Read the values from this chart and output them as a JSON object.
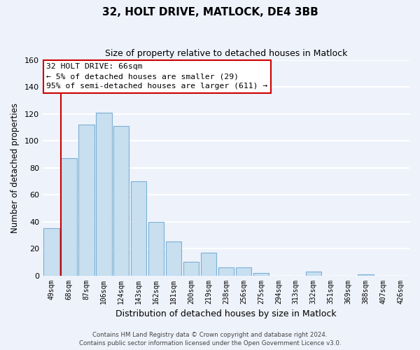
{
  "title": "32, HOLT DRIVE, MATLOCK, DE4 3BB",
  "subtitle": "Size of property relative to detached houses in Matlock",
  "xlabel": "Distribution of detached houses by size in Matlock",
  "ylabel": "Number of detached properties",
  "bar_labels": [
    "49sqm",
    "68sqm",
    "87sqm",
    "106sqm",
    "124sqm",
    "143sqm",
    "162sqm",
    "181sqm",
    "200sqm",
    "219sqm",
    "238sqm",
    "256sqm",
    "275sqm",
    "294sqm",
    "313sqm",
    "332sqm",
    "351sqm",
    "369sqm",
    "388sqm",
    "407sqm",
    "426sqm"
  ],
  "bar_values": [
    35,
    87,
    112,
    121,
    111,
    70,
    40,
    25,
    10,
    17,
    6,
    6,
    2,
    0,
    0,
    3,
    0,
    0,
    1,
    0,
    0
  ],
  "bar_color": "#c8dff0",
  "bar_edge_color": "#7aafd4",
  "highlight_line_color": "#cc0000",
  "annotation_title": "32 HOLT DRIVE: 66sqm",
  "annotation_line1": "← 5% of detached houses are smaller (29)",
  "annotation_line2": "95% of semi-detached houses are larger (611) →",
  "annotation_box_color": "#ffffff",
  "annotation_box_edge_color": "#cc0000",
  "ylim": [
    0,
    160
  ],
  "yticks": [
    0,
    20,
    40,
    60,
    80,
    100,
    120,
    140,
    160
  ],
  "footer_line1": "Contains HM Land Registry data © Crown copyright and database right 2024.",
  "footer_line2": "Contains public sector information licensed under the Open Government Licence v3.0.",
  "background_color": "#eef2fb",
  "grid_color": "#ffffff"
}
